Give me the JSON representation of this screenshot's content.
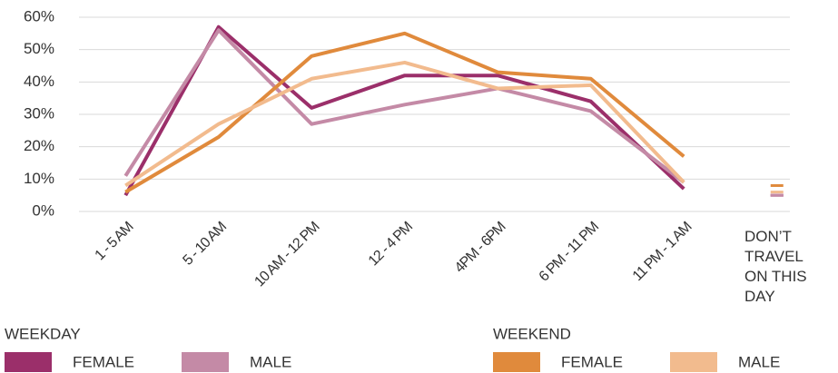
{
  "chart_data": {
    "type": "line",
    "categories": [
      "1 - 5 AM",
      "5 - 10 AM",
      "10 AM - 12 PM",
      "12 - 4 PM",
      "4PM - 6PM",
      "6 PM - 11 PM",
      "11 PM - 1 AM",
      "DON’T TRAVEL ON THIS DAY"
    ],
    "series": [
      {
        "name": "FEMALE",
        "group": "WEEKDAY",
        "color": "#9b2f6a",
        "values": [
          5,
          57,
          32,
          42,
          42,
          34,
          7,
          5
        ]
      },
      {
        "name": "MALE",
        "group": "WEEKDAY",
        "color": "#c48aa6",
        "values": [
          11,
          56,
          27,
          33,
          38,
          31,
          9,
          5
        ]
      },
      {
        "name": "FEMALE",
        "group": "WEEKEND",
        "color": "#e08a3c",
        "values": [
          6,
          23,
          48,
          55,
          43,
          41,
          17,
          8
        ]
      },
      {
        "name": "MALE",
        "group": "WEEKEND",
        "color": "#f2bb8e",
        "values": [
          8,
          27,
          41,
          46,
          38,
          39,
          9,
          6
        ]
      }
    ],
    "ylim": [
      0,
      60
    ],
    "yticks": [
      {
        "value": 0,
        "label": "0%"
      },
      {
        "value": 10,
        "label": "10%"
      },
      {
        "value": 20,
        "label": "20%"
      },
      {
        "value": 30,
        "label": "30%"
      },
      {
        "value": 40,
        "label": "40%"
      },
      {
        "value": 50,
        "label": "50%"
      },
      {
        "value": 60,
        "label": "60%"
      }
    ],
    "grid": true
  }
}
